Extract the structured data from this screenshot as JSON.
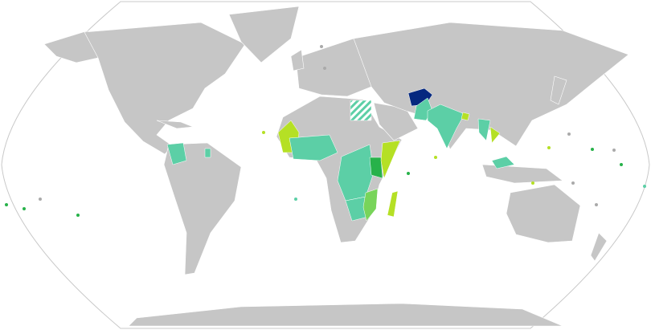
{
  "map": {
    "projection": "robinson",
    "colors": {
      "ocean": "#ffffff",
      "border": "#ffffff",
      "outline": "#c8c8c8",
      "no_data": "#c6c6c6",
      "category_1": "#5ccfa6",
      "category_2": "#27b24a",
      "category_3": "#78d45a",
      "category_4": "#b5e025",
      "highlight": "#05287f",
      "hatched": "#5ccfa6"
    },
    "highlighted_regions": [
      {
        "region": "afghanistan",
        "category": "highlight"
      },
      {
        "region": "india",
        "category": "category_1"
      },
      {
        "region": "pakistan",
        "category": "category_1"
      },
      {
        "region": "bangladesh",
        "category": "category_4"
      },
      {
        "region": "kenya",
        "category": "category_2"
      },
      {
        "region": "somalia",
        "category": "category_4"
      },
      {
        "region": "madagascar",
        "category": "category_4"
      },
      {
        "region": "mozambique",
        "category": "category_3"
      },
      {
        "region": "mauritania",
        "category": "category_4"
      },
      {
        "region": "egypt",
        "category": "hatched"
      },
      {
        "region": "colombia",
        "category": "category_1"
      },
      {
        "region": "central-africa",
        "category": "category_1"
      },
      {
        "region": "west-africa",
        "category": "category_1"
      },
      {
        "region": "southern-africa",
        "category": "category_1"
      },
      {
        "region": "southeast-asia",
        "category": "category_1"
      },
      {
        "region": "vietnam",
        "category": "category_4"
      }
    ]
  }
}
